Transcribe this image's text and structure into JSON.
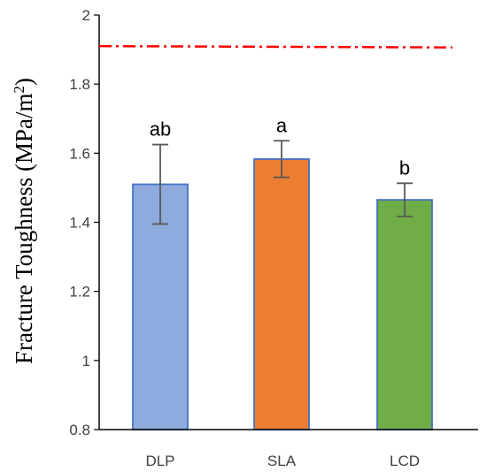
{
  "chart_data": {
    "type": "bar",
    "title": "",
    "xlabel": "",
    "ylabel": "Fracture Toughness (MPa/m",
    "ylabel_superscript": "2",
    "ylabel_close": ")",
    "ylim": [
      0.8,
      2.0
    ],
    "yticks": [
      0.8,
      1,
      1.2,
      1.4,
      1.6,
      1.8,
      2
    ],
    "ytick_labels": [
      "0.8",
      "1",
      "1.2",
      "1.4",
      "1.6",
      "1.8",
      "2"
    ],
    "grid": false,
    "legend": "none",
    "categories": [
      "DLP",
      "SLA",
      "LCD"
    ],
    "values": [
      1.51,
      1.583,
      1.465
    ],
    "error": [
      0.115,
      0.053,
      0.048
    ],
    "significance_labels": [
      "ab",
      "a",
      "b"
    ],
    "colors": [
      "#8faadc",
      "#ed7d31",
      "#70ad47"
    ],
    "bar_edge_color": "#4472c4",
    "reference_line": {
      "value": 1.91,
      "color": "#ff0000",
      "style": "dash-dot"
    }
  }
}
